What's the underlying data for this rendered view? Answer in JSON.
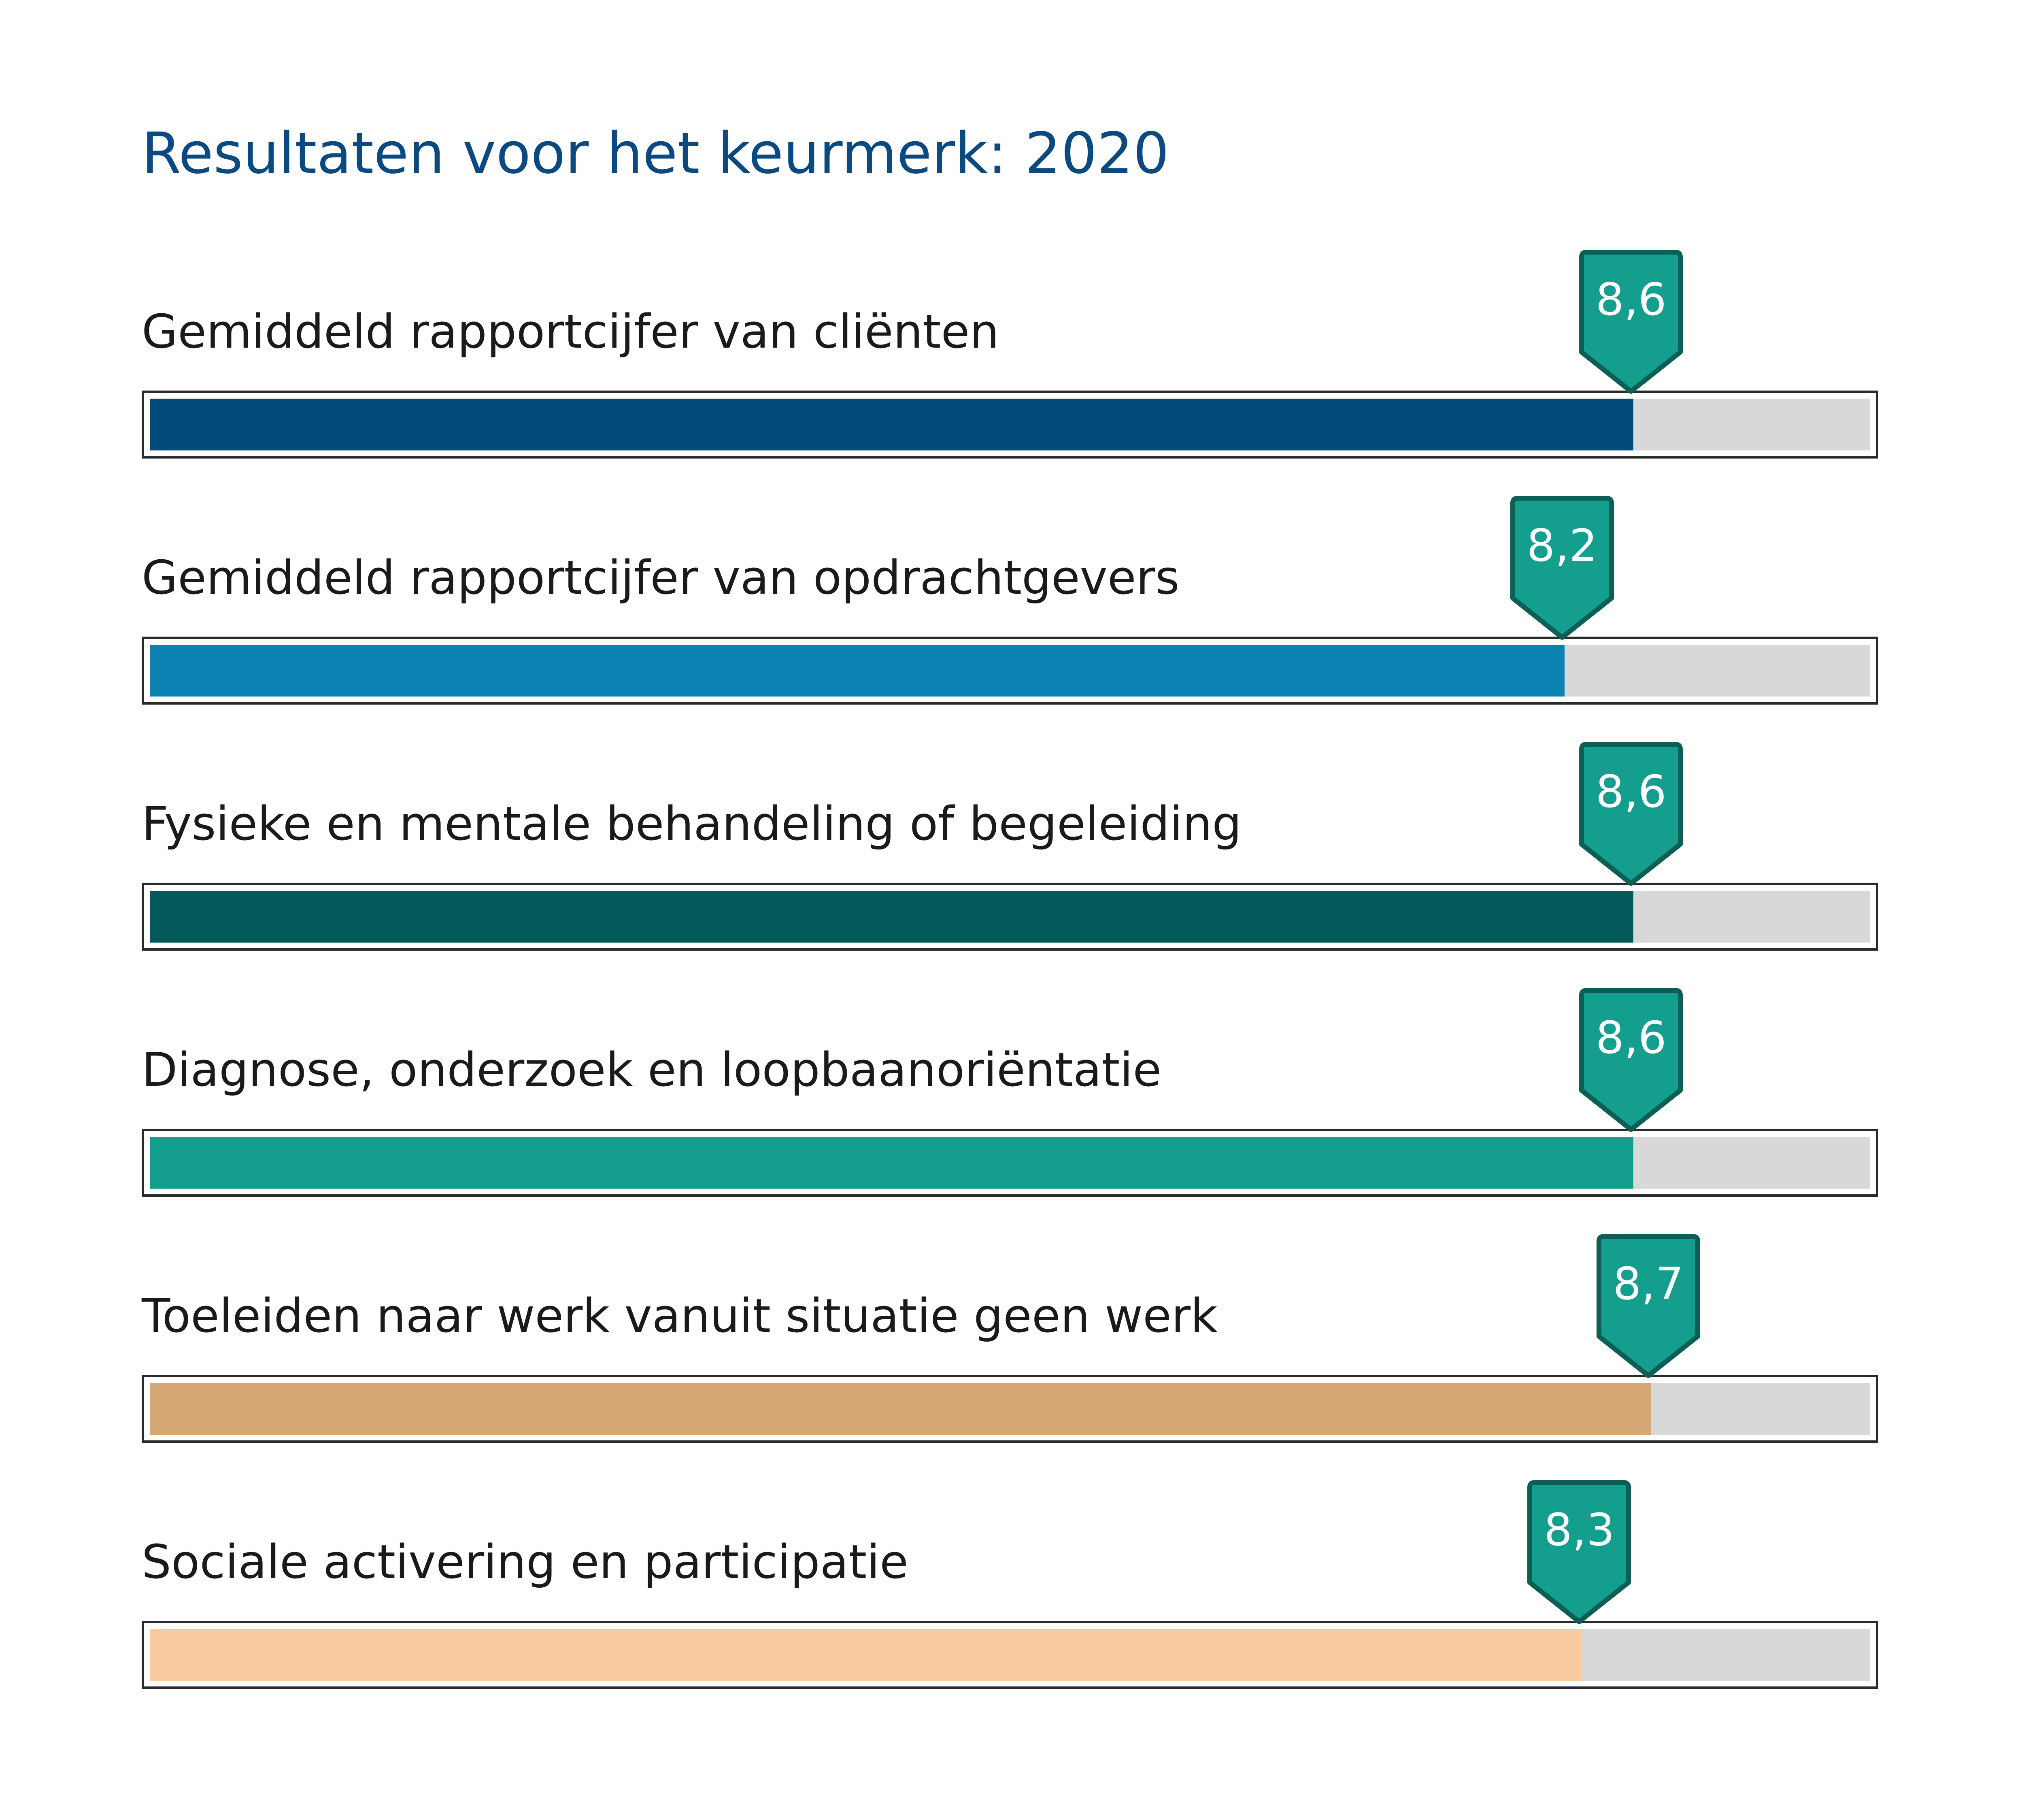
{
  "chart_data": {
    "type": "bar",
    "orientation": "horizontal",
    "title": "Resultaten voor het keurmerk: 2020",
    "xlim": [
      0,
      10
    ],
    "grid": false,
    "legend": "none",
    "marker_color": "#139e8d",
    "marker_border_color": "#0d5f55",
    "track_color": "#d7d8d7",
    "categories": [
      "Gemiddeld rapportcijfer van cliënten",
      "Gemiddeld rapportcijfer van opdrachtgevers",
      "Fysieke en mentale behandeling of begeleiding",
      "Diagnose, onderzoek en loopbaanoriëntatie",
      "Toeleiden naar werk vanuit situatie geen werk",
      "Sociale activering en participatie"
    ],
    "values": [
      8.6,
      8.2,
      8.6,
      8.6,
      8.7,
      8.3
    ],
    "value_labels": [
      "8,6",
      "8,2",
      "8,6",
      "8,6",
      "8,7",
      "8,3"
    ],
    "bar_colors": [
      "#024a7c",
      "#0c82b2",
      "#045a5a",
      "#139e8d",
      "#d6a774",
      "#f8cb9e"
    ]
  }
}
